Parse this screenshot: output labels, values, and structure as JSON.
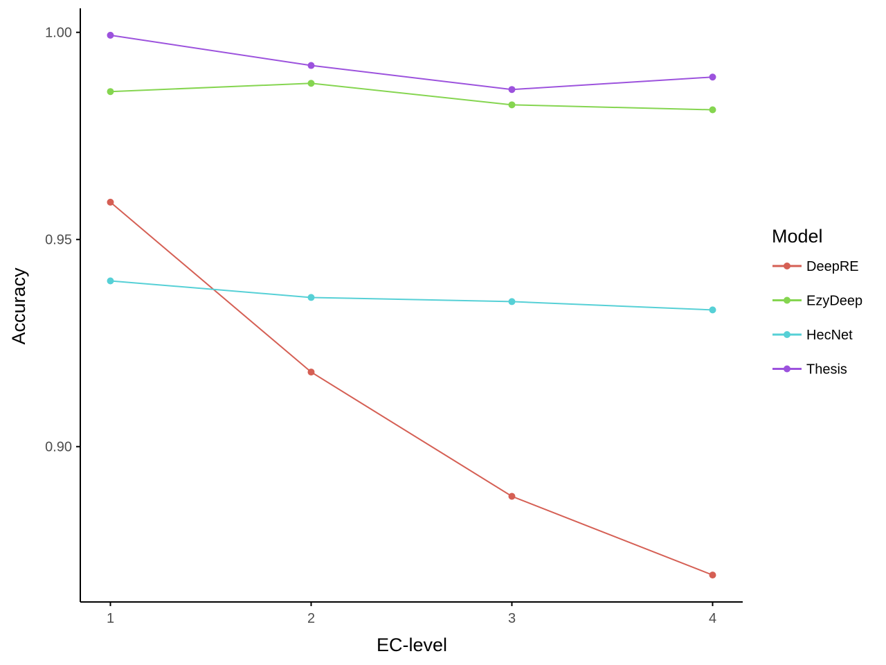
{
  "chart_data": {
    "type": "line",
    "xlabel": "EC-level",
    "ylabel": "Accuracy",
    "x": [
      1,
      2,
      3,
      4
    ],
    "x_ticks": [
      "1",
      "2",
      "3",
      "4"
    ],
    "y_ticks": [
      "0.90",
      "0.95",
      "1.00"
    ],
    "xlim": [
      0.85,
      4.15
    ],
    "ylim": [
      0.8625,
      1.0058
    ],
    "grid": false,
    "legend": {
      "title": "Model",
      "placement": "right"
    },
    "series": [
      {
        "name": "DeepRE",
        "color": "#D55F54",
        "values": [
          0.959,
          0.918,
          0.888,
          0.869
        ]
      },
      {
        "name": "EzyDeep",
        "color": "#85D550",
        "values": [
          0.9857,
          0.9877,
          0.9825,
          0.9813
        ]
      },
      {
        "name": "HecNet",
        "color": "#56D0D6",
        "values": [
          0.94,
          0.936,
          0.935,
          0.933
        ]
      },
      {
        "name": "Thesis",
        "color": "#9C52DD",
        "values": [
          0.9993,
          0.992,
          0.9862,
          0.9892
        ]
      }
    ]
  }
}
